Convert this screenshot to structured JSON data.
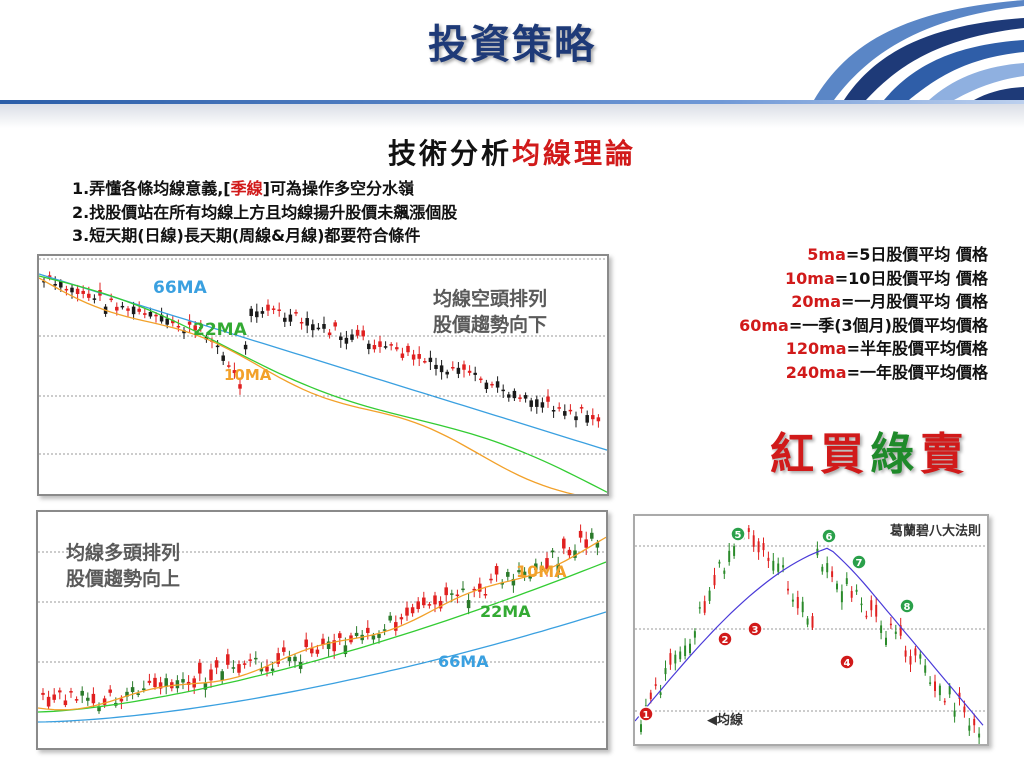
{
  "slide_title": "投資策略",
  "subtitle": {
    "prefix": "技術分析",
    "highlight": "均線理論"
  },
  "points": [
    {
      "num": "1.",
      "before": "弄懂各條均線意義,[",
      "red": "季線",
      "after": "]可為操作多空分水嶺"
    },
    {
      "num": "2.",
      "before": "找股價站在所有均線上方且均線揚升股價未飆漲個股",
      "red": "",
      "after": ""
    },
    {
      "num": "3.",
      "before": "短天期(日線)長天期(周線&月線)都要符合條件",
      "red": "",
      "after": ""
    }
  ],
  "ma_definitions": [
    {
      "key": "5ma",
      "desc": "=5日股價平均 價格"
    },
    {
      "key": "10ma",
      "desc": "=10日股價平均 價格"
    },
    {
      "key": "20ma",
      "desc": "=一月股價平均 價格"
    },
    {
      "key": "60ma",
      "desc": "=一季(3個月)股價平均價格"
    },
    {
      "key": "120ma",
      "desc": "=半年股價平均價格"
    },
    {
      "key": "240ma",
      "desc": "=一年股價平均價格"
    }
  ],
  "slogan": {
    "red1": "紅",
    "buy": "買",
    "green": "綠",
    "sell": "賣"
  },
  "colors": {
    "title": "#1e3a78",
    "red": "#d11a1a",
    "green": "#1f8a2a",
    "ma66": "#3aa0e0",
    "ma22": "#33cc33",
    "ma10": "#f2a12a"
  },
  "chart_bear": {
    "note_line1": "均線空頭排列",
    "note_line2": "股價趨勢向下",
    "label_66": "66MA",
    "label_22": "22MA",
    "label_10": "10MA"
  },
  "chart_bull": {
    "note_line1": "均線多頭排列",
    "note_line2": "股價趨勢向上",
    "label_66": "66MA",
    "label_22": "22MA",
    "label_10": "10MA"
  },
  "chart_granville": {
    "title": "葛蘭碧八大法則",
    "ma_label": "均線",
    "markers": [
      "1",
      "2",
      "3",
      "4",
      "5",
      "6",
      "7",
      "8"
    ]
  }
}
